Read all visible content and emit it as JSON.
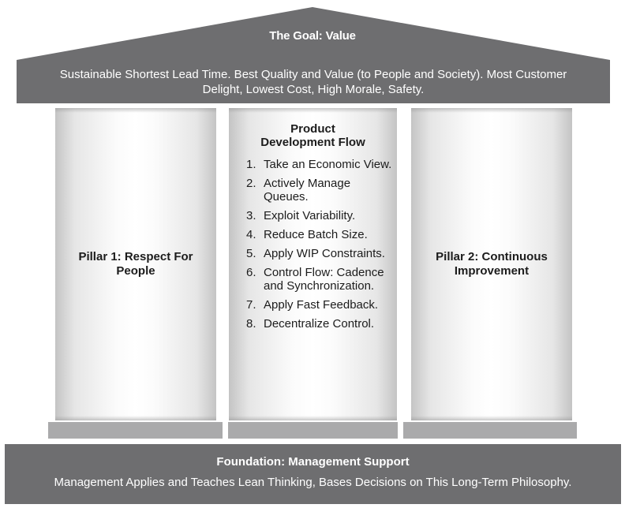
{
  "colors": {
    "roof": "#6e6e70",
    "beam": "#6e6e70",
    "base_blocks": "#aaaaab",
    "foundation": "#6e6e70",
    "pillar_highlight": "#ffffff",
    "pillar_shadow": "#c4c4c4",
    "text_dark": "#1c1c1c",
    "text_light": "#ffffff"
  },
  "roof": {
    "title": "The Goal: Value"
  },
  "beam": {
    "text": "Sustainable Shortest Lead Time. Best Quality and Value (to People and Society). Most Customer Delight, Lowest Cost, High Morale, Safety."
  },
  "pillars": {
    "left": {
      "line1": "Pillar 1: Respect For",
      "line2": "People"
    },
    "center": {
      "title_line1": "Product",
      "title_line2": "Development Flow",
      "items": [
        {
          "num": "1.",
          "text": "Take an Economic View."
        },
        {
          "num": "2.",
          "text": "Actively Manage Queues."
        },
        {
          "num": "3.",
          "text": "Exploit Variability."
        },
        {
          "num": "4.",
          "text": "Reduce Batch Size."
        },
        {
          "num": "5.",
          "text": "Apply WIP Constraints."
        },
        {
          "num": "6.",
          "text": "Control Flow: Cadence and Synchronization."
        },
        {
          "num": "7.",
          "text": "Apply Fast Feedback."
        },
        {
          "num": "8.",
          "text": "Decentralize Control."
        }
      ]
    },
    "right": {
      "line1": "Pillar 2: Continuous",
      "line2": "Improvement"
    }
  },
  "foundation": {
    "title": "Foundation: Management Support",
    "text": "Management Applies and Teaches Lean Thinking, Bases Decisions on This Long-Term Philosophy."
  }
}
